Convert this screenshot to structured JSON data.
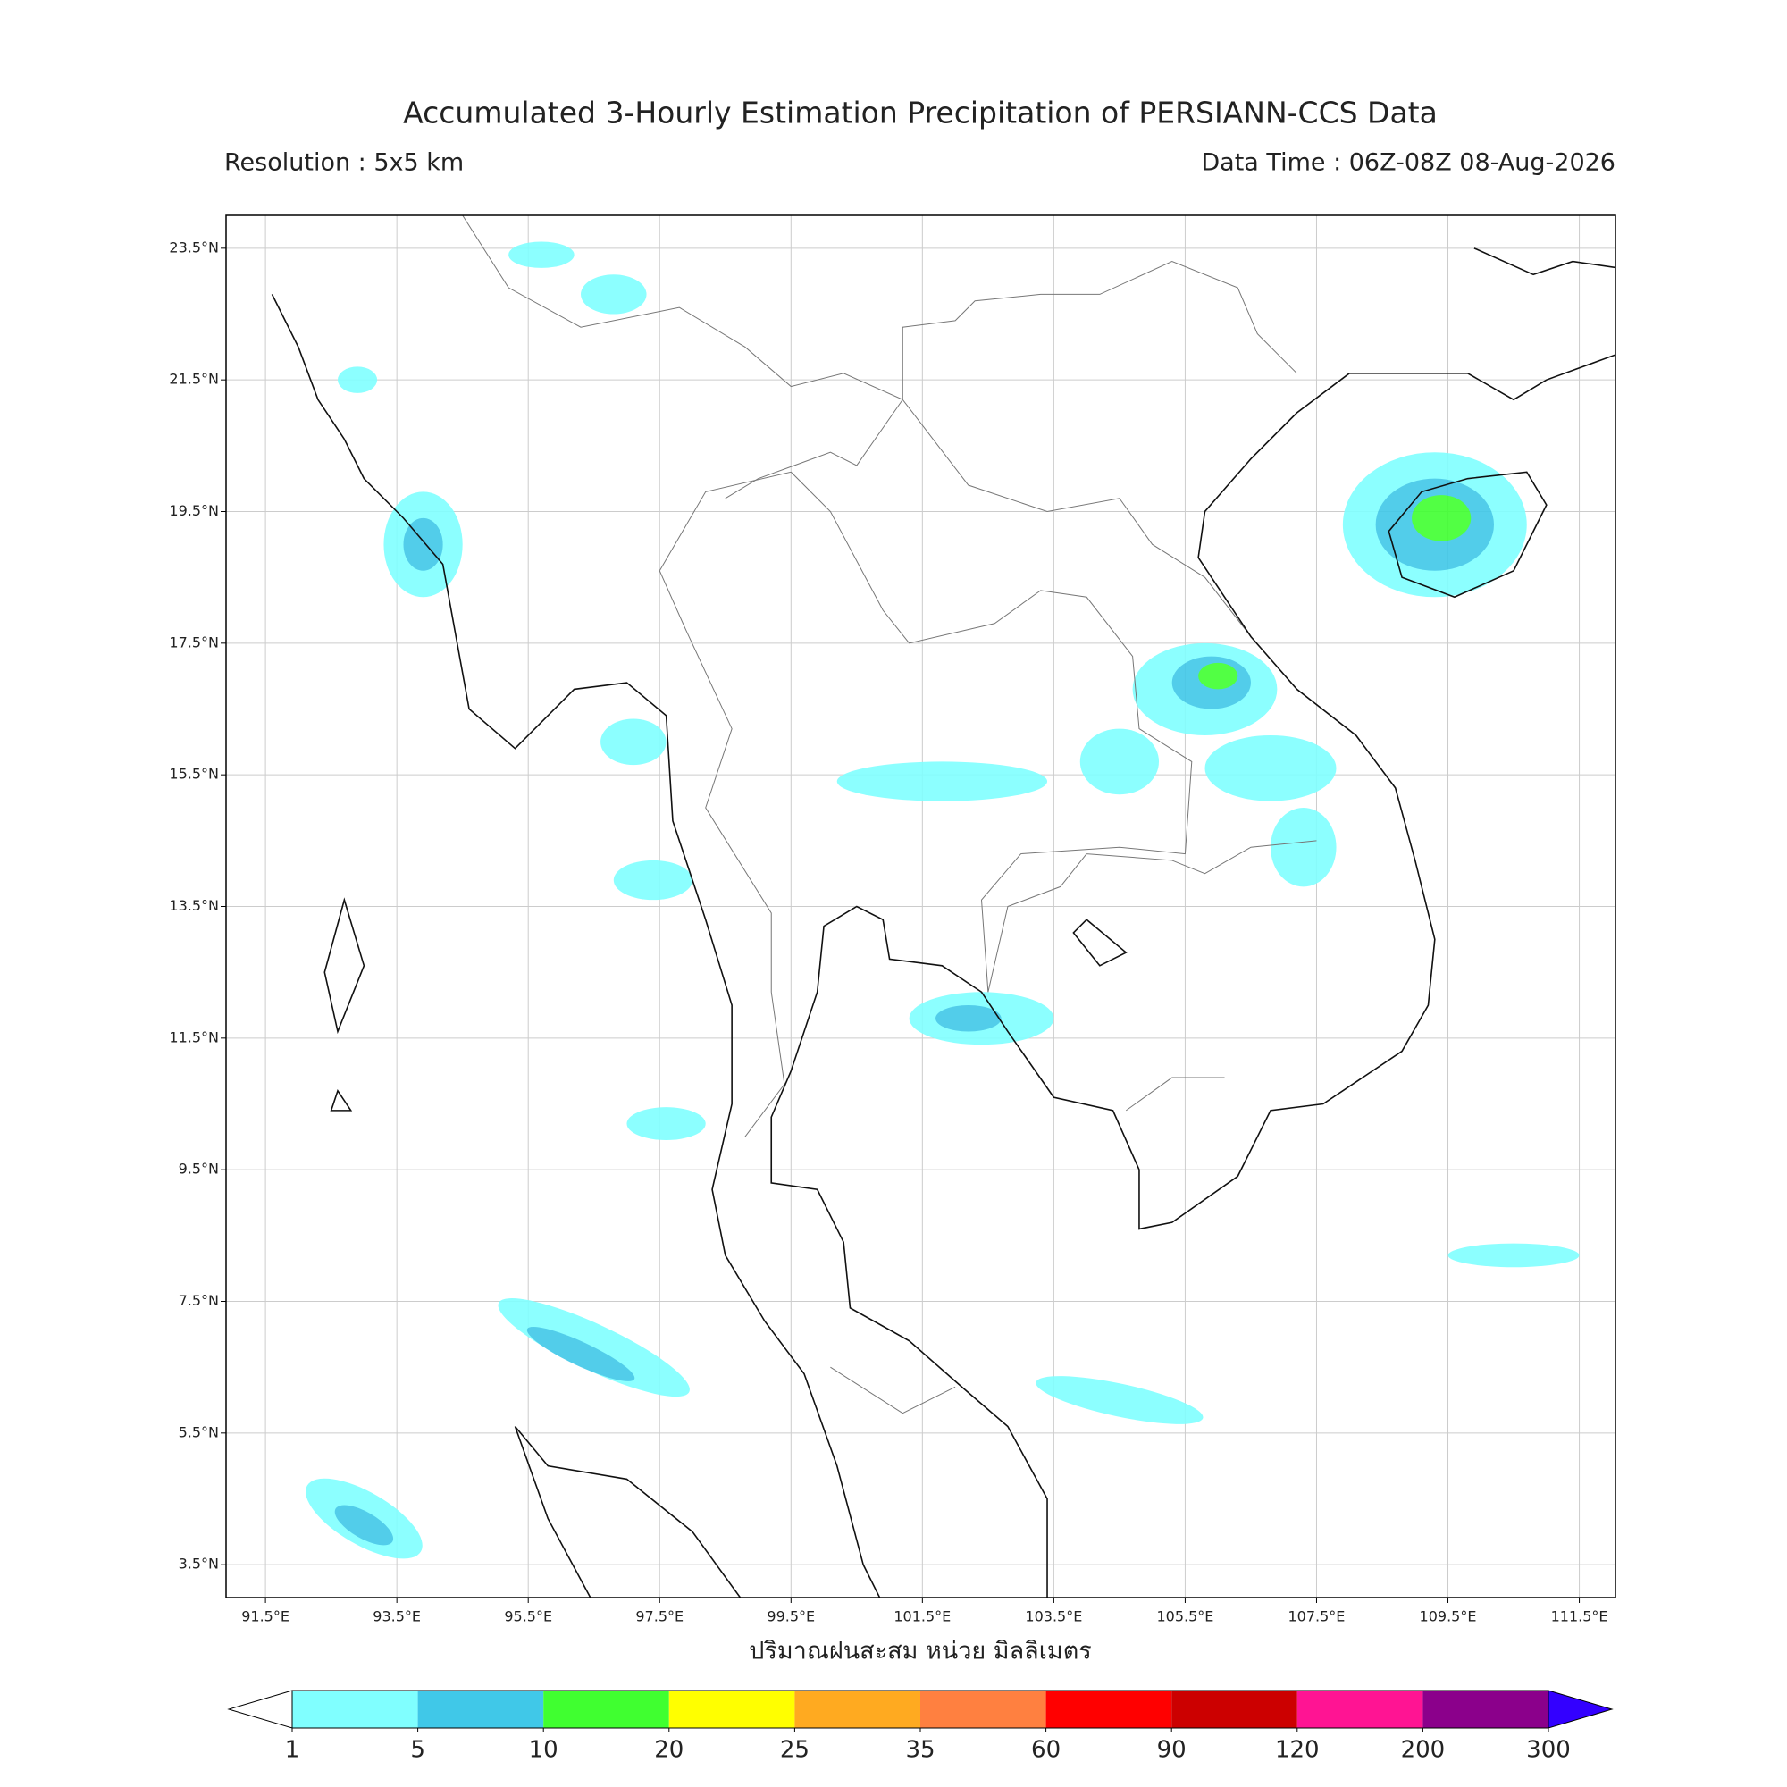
{
  "map": {
    "title": "Accumulated 3-Hourly Estimation Precipitation of PERSIANN-CCS Data",
    "resolution": "Resolution : 5x5 km",
    "data_time": "Data Time : 06Z-08Z 08-Aug-2026",
    "xlabel": "ปริมาณฝนสะสม หน่วย มิลลิเมตร",
    "xlim": [
      90.9,
      112.05
    ],
    "ylim": [
      3.0,
      24.0
    ],
    "xticks": [
      {
        "value": 91.5,
        "label": "91.5°E"
      },
      {
        "value": 93.5,
        "label": "93.5°E"
      },
      {
        "value": 95.5,
        "label": "95.5°E"
      },
      {
        "value": 97.5,
        "label": "97.5°E"
      },
      {
        "value": 99.5,
        "label": "99.5°E"
      },
      {
        "value": 101.5,
        "label": "101.5°E"
      },
      {
        "value": 103.5,
        "label": "103.5°E"
      },
      {
        "value": 105.5,
        "label": "105.5°E"
      },
      {
        "value": 107.5,
        "label": "107.5°E"
      },
      {
        "value": 109.5,
        "label": "109.5°E"
      },
      {
        "value": 111.5,
        "label": "111.5°E"
      }
    ],
    "yticks": [
      {
        "value": 23.5,
        "label": "23.5°N"
      },
      {
        "value": 21.5,
        "label": "21.5°N"
      },
      {
        "value": 19.5,
        "label": "19.5°N"
      },
      {
        "value": 17.5,
        "label": "17.5°N"
      },
      {
        "value": 15.5,
        "label": "15.5°N"
      },
      {
        "value": 13.5,
        "label": "13.5°N"
      },
      {
        "value": 11.5,
        "label": "11.5°N"
      },
      {
        "value": 9.5,
        "label": "9.5°N"
      },
      {
        "value": 7.5,
        "label": "7.5°N"
      },
      {
        "value": 5.5,
        "label": "5.5°N"
      },
      {
        "value": 3.5,
        "label": "3.5°N"
      }
    ],
    "grid": true,
    "colorbar": {
      "levels": [
        1,
        5,
        10,
        20,
        25,
        35,
        60,
        90,
        120,
        200,
        300
      ],
      "colors": [
        "#80ffff",
        "#40c8e8",
        "#40ff30",
        "#ffff00",
        "#ffaa20",
        "#ff8040",
        "#ff0000",
        "#cc0000",
        "#ff1493",
        "#8b008b"
      ],
      "under_color": "#ffffff",
      "over_color": "#3300ff"
    }
  }
}
